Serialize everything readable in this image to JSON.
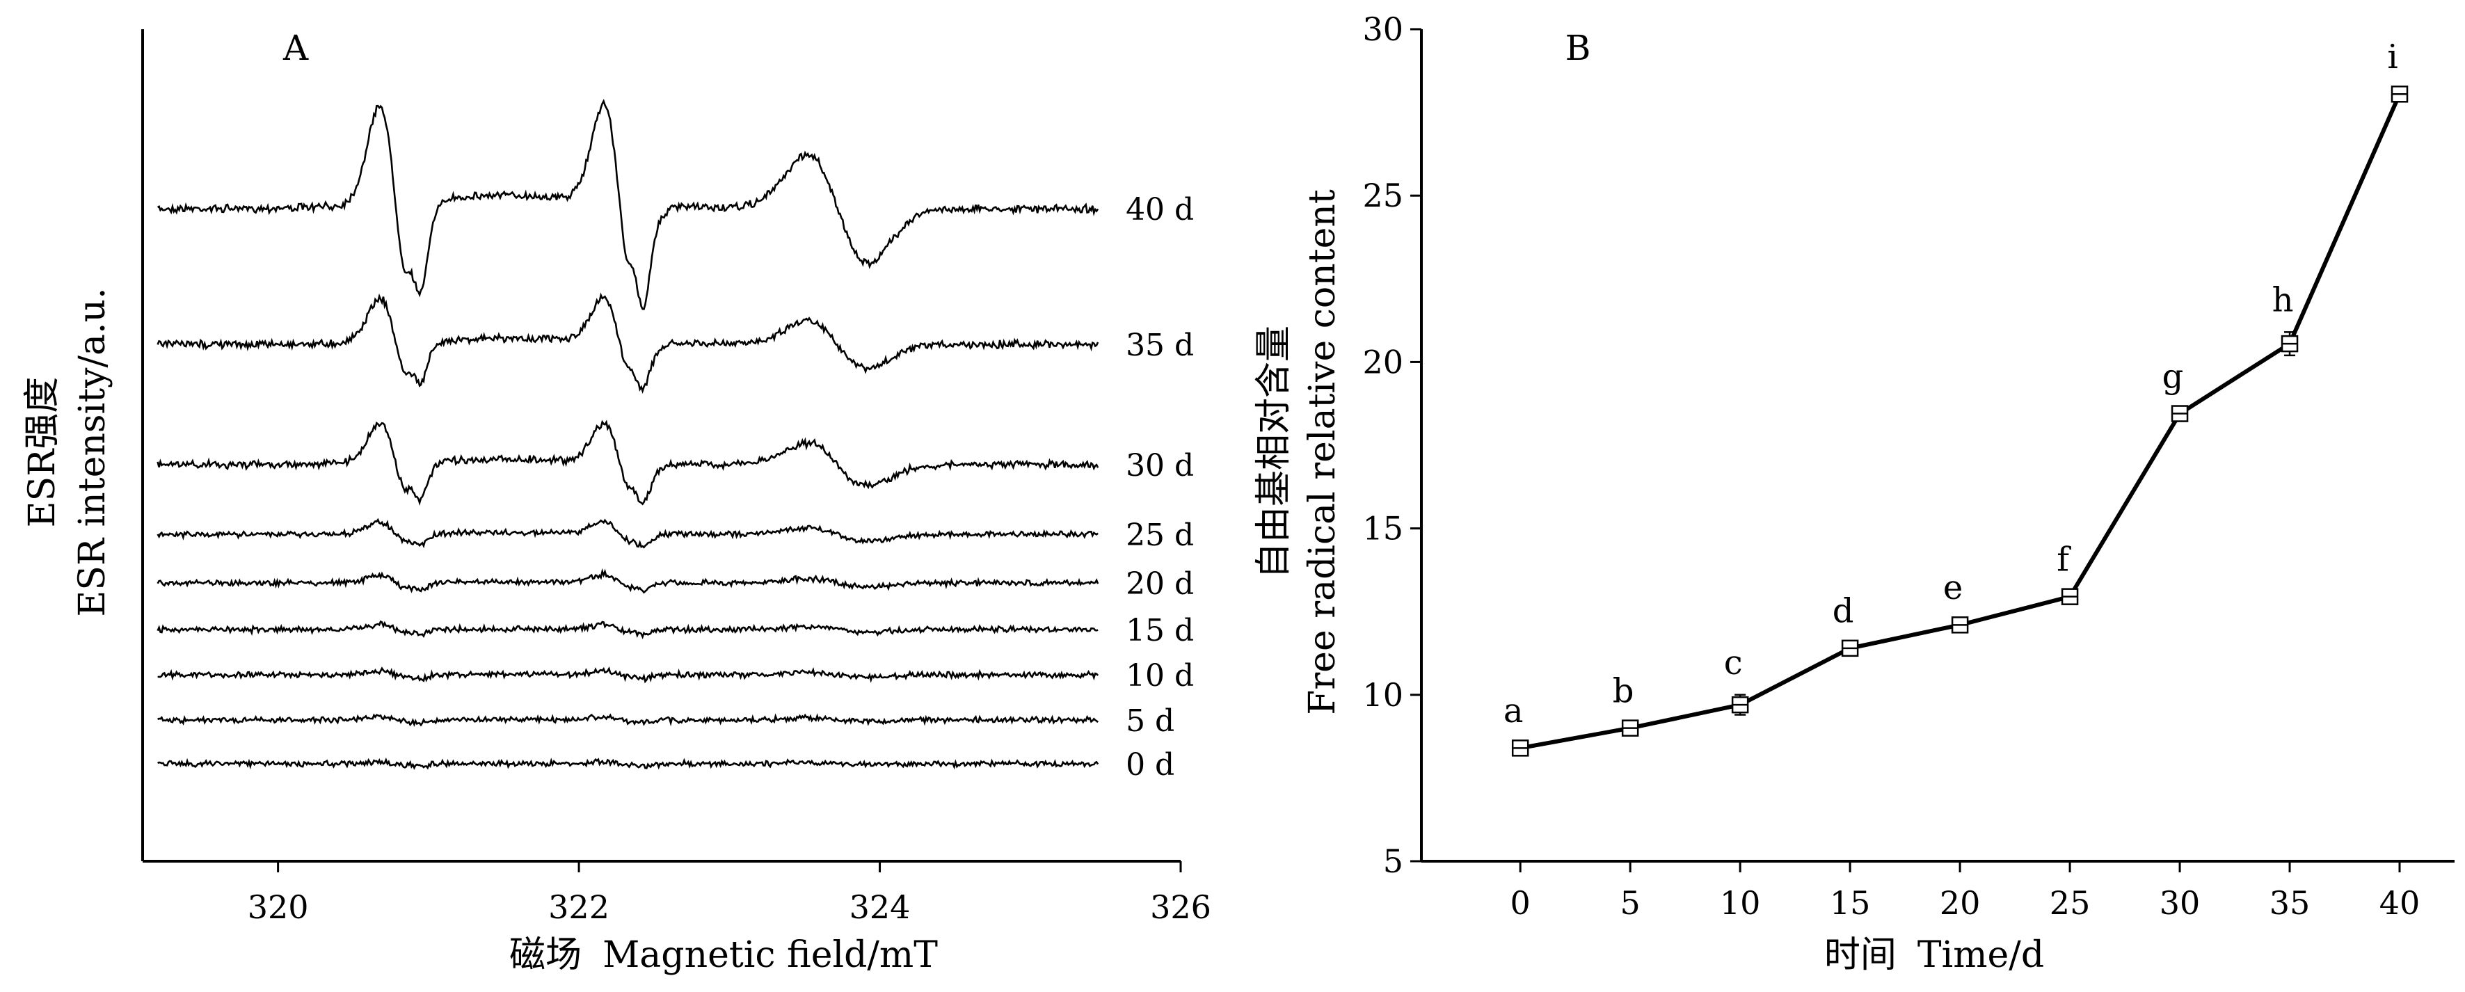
{
  "chart_data": [
    {
      "type": "line",
      "panel": "A",
      "xlabel_cn": "磁场",
      "xlabel_en": "Magnetic field/mT",
      "ylabel_cn": "ESR强度",
      "ylabel_en": "ESR intensity/a.u.",
      "xlim": [
        319.1,
        326.0
      ],
      "x_ticks": [
        "320",
        "322",
        "324",
        "326"
      ],
      "x_tick_values": [
        320,
        322,
        324,
        326
      ],
      "series": [
        {
          "name": "40 d",
          "amplitude": 1.0
        },
        {
          "name": "35 d",
          "amplitude": 0.45
        },
        {
          "name": "30 d",
          "amplitude": 0.4
        },
        {
          "name": "25 d",
          "amplitude": 0.12
        },
        {
          "name": "20 d",
          "amplitude": 0.08
        },
        {
          "name": "15 d",
          "amplitude": 0.05
        },
        {
          "name": "10 d",
          "amplitude": 0.04
        },
        {
          "name": "5 d",
          "amplitude": 0.03
        },
        {
          "name": "0 d",
          "amplitude": 0.02
        }
      ],
      "grid": false
    },
    {
      "type": "line",
      "panel": "B",
      "xlabel_cn": "时间",
      "xlabel_en": "Time/d",
      "ylabel_cn": "自由基相对含量",
      "ylabel_en": "Free radical relative content",
      "x": [
        0,
        5,
        10,
        15,
        20,
        25,
        30,
        35,
        40
      ],
      "y": [
        8.4,
        9.0,
        9.7,
        11.4,
        12.1,
        12.95,
        18.45,
        20.55,
        28.05
      ],
      "error": [
        0.15,
        0.15,
        0.3,
        0.15,
        0.15,
        0.15,
        0.15,
        0.35,
        0.15
      ],
      "point_labels": [
        "a",
        "b",
        "c",
        "d",
        "e",
        "f",
        "g",
        "h",
        "i"
      ],
      "xlim": [
        -4.5,
        42.5
      ],
      "ylim": [
        5,
        30
      ],
      "x_ticks": [
        "0",
        "5",
        "10",
        "15",
        "20",
        "25",
        "30",
        "35",
        "40"
      ],
      "y_ticks": [
        "5",
        "10",
        "15",
        "20",
        "25",
        "30"
      ],
      "grid": false
    }
  ]
}
